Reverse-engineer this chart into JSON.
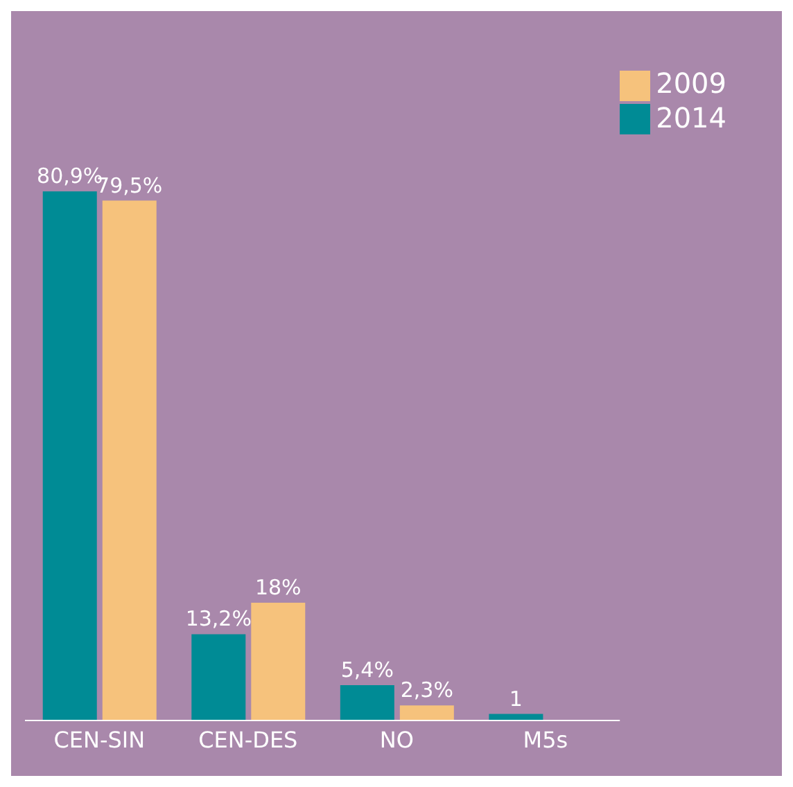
{
  "chart_data": {
    "type": "bar",
    "categories": [
      "CEN-SIN",
      "CEN-DES",
      "NO",
      "M5s"
    ],
    "series": [
      {
        "name": "2014",
        "color": "#008b95",
        "values": [
          80.9,
          13.2,
          5.4,
          1
        ],
        "value_labels": [
          "80,9%",
          "13,2%",
          "5,4%",
          "1"
        ]
      },
      {
        "name": "2009",
        "color": "#f6c27c",
        "values": [
          79.5,
          18,
          2.3,
          null
        ],
        "value_labels": [
          "79,5%",
          "18%",
          "2,3%",
          null
        ]
      }
    ],
    "legend": "top right",
    "grid": false
  }
}
